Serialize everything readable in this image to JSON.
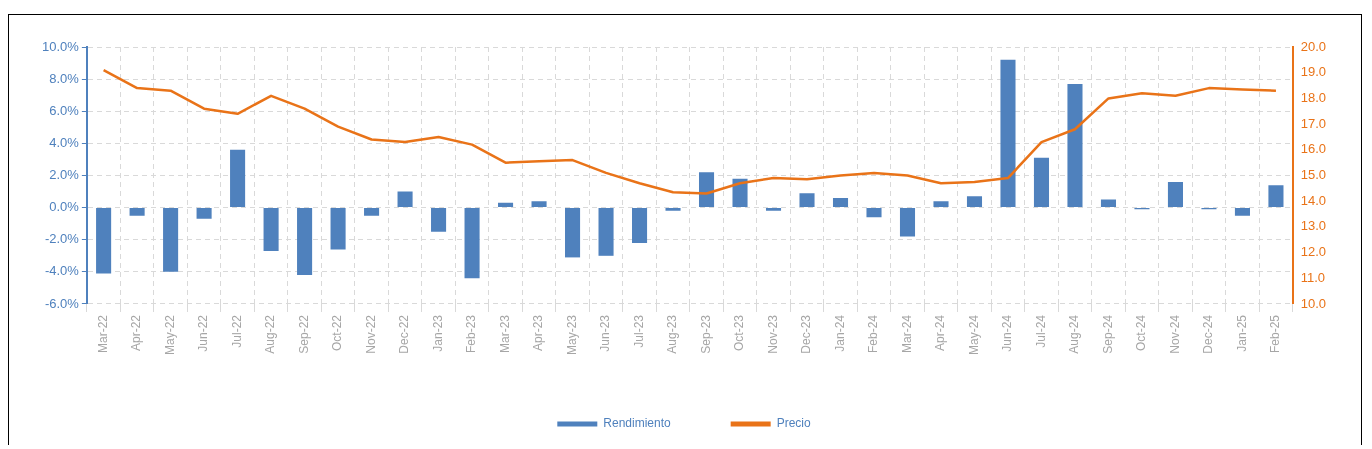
{
  "chart_data": {
    "type": "bar",
    "categories": [
      "Mar-22",
      "Apr-22",
      "May-22",
      "Jun-22",
      "Jul-22",
      "Aug-22",
      "Sep-22",
      "Oct-22",
      "Nov-22",
      "Dec-22",
      "Jan-23",
      "Feb-23",
      "Mar-23",
      "Apr-23",
      "May-23",
      "Jun-23",
      "Jul-23",
      "Aug-23",
      "Sep-23",
      "Oct-23",
      "Nov-23",
      "Dec-23",
      "Jan-24",
      "Feb-24",
      "Mar-24",
      "Apr-24",
      "May-24",
      "Jun-24",
      "Jul-24",
      "Aug-24",
      "Sep-24",
      "Oct-24",
      "Nov-24",
      "Dec-24",
      "Jan-25",
      "Feb-25"
    ],
    "series": [
      {
        "name": "Rendimiento",
        "color": "#4f81bd",
        "values": [
          -4.1,
          -0.5,
          -4.0,
          -0.7,
          3.6,
          -2.7,
          -4.2,
          -2.6,
          -0.5,
          1.0,
          -1.5,
          -4.4,
          0.3,
          0.4,
          -3.1,
          -3.0,
          -2.2,
          -0.2,
          2.2,
          1.8,
          -0.2,
          0.9,
          0.6,
          -0.6,
          -1.8,
          0.4,
          0.7,
          9.2,
          3.1,
          7.7,
          0.5,
          -0.1,
          1.6,
          -0.1,
          -0.5,
          1.4
        ]
      },
      {
        "name": "Precio",
        "type": "line",
        "axis": "y2",
        "color": "#e97318",
        "values": [
          19.1,
          18.4,
          18.3,
          17.6,
          17.4,
          18.1,
          17.6,
          16.9,
          16.4,
          16.3,
          16.5,
          16.2,
          15.5,
          15.55,
          15.6,
          15.1,
          14.7,
          14.35,
          14.3,
          14.7,
          14.9,
          14.85,
          15.0,
          15.1,
          15.0,
          14.7,
          14.75,
          14.9,
          16.3,
          16.8,
          18.0,
          18.2,
          18.1,
          18.4,
          18.35,
          18.3
        ]
      }
    ],
    "ylim": [
      -6,
      10
    ],
    "yticks": [
      {
        "value": -6,
        "label": "-6.0%"
      },
      {
        "value": -4,
        "label": "-4.0%"
      },
      {
        "value": -2,
        "label": "-2.0%"
      },
      {
        "value": 0,
        "label": "0.0%"
      },
      {
        "value": 2,
        "label": "2.0%"
      },
      {
        "value": 4,
        "label": "4.0%"
      },
      {
        "value": 6,
        "label": "6.0%"
      },
      {
        "value": 8,
        "label": "8.0%"
      },
      {
        "value": 10,
        "label": "10.0%"
      }
    ],
    "y2lim": [
      10,
      20
    ],
    "y2ticks": [
      {
        "value": 10,
        "label": "10.0"
      },
      {
        "value": 11,
        "label": "11.0"
      },
      {
        "value": 12,
        "label": "12.0"
      },
      {
        "value": 13,
        "label": "13.0"
      },
      {
        "value": 14,
        "label": "14.0"
      },
      {
        "value": 15,
        "label": "15.0"
      },
      {
        "value": 16,
        "label": "16.0"
      },
      {
        "value": 17,
        "label": "17.0"
      },
      {
        "value": 18,
        "label": "18.0"
      },
      {
        "value": 19,
        "label": "19.0"
      },
      {
        "value": 20,
        "label": "20.0"
      }
    ],
    "grid": true,
    "legend": "bottom",
    "marker": "none",
    "line_style": "solid"
  }
}
